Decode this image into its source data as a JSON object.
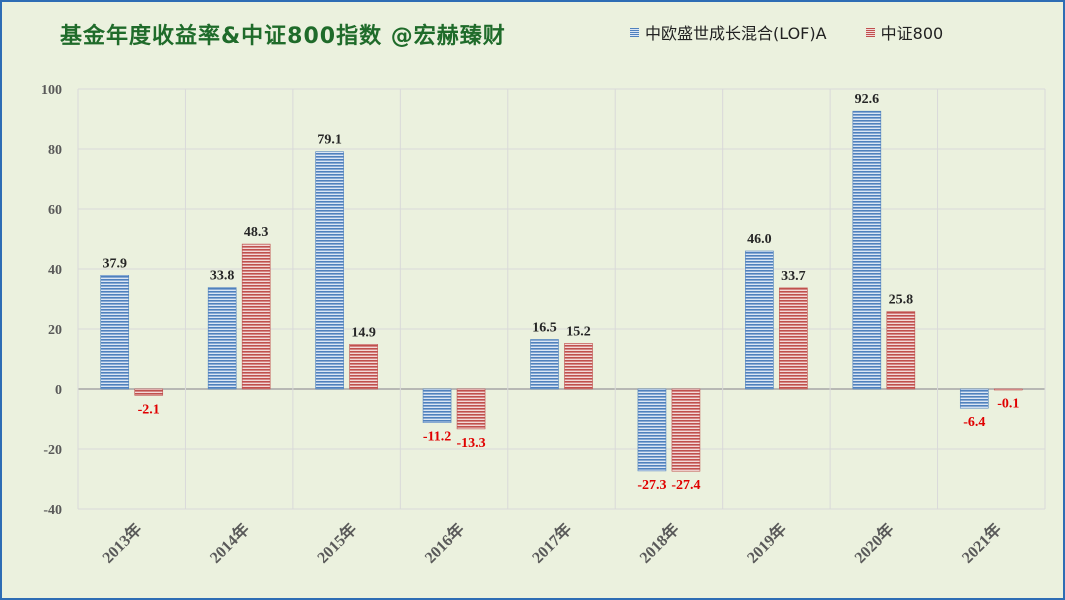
{
  "title": "基金年度收益率&中证800指数 @宏赫臻财",
  "colors": {
    "background": "#ebf1de",
    "border": "#2e6db4",
    "title": "#1f6b2a",
    "fund": "#4f81bd",
    "index": "#c0504d",
    "positive_label": "#262626",
    "negative_label": "#e00000"
  },
  "chart_data": {
    "type": "bar",
    "title": "基金年度收益率&中证800指数 @宏赫臻财",
    "categories": [
      "2013年",
      "2014年",
      "2015年",
      "2016年",
      "2017年",
      "2018年",
      "2019年",
      "2020年",
      "2021年"
    ],
    "series": [
      {
        "name": "中欧盛世成长混合(LOF)A",
        "values": [
          37.9,
          33.8,
          79.1,
          -11.2,
          16.5,
          -27.3,
          46.0,
          92.6,
          -6.4
        ]
      },
      {
        "name": "中证800",
        "values": [
          -2.1,
          48.3,
          14.9,
          -13.3,
          15.2,
          -27.4,
          33.7,
          25.8,
          -0.1
        ]
      }
    ],
    "ylim": [
      -40,
      100
    ],
    "yticks": [
      100,
      80,
      60,
      40,
      20,
      0,
      -20,
      -40
    ],
    "grid": true,
    "legend": "top-right",
    "xlabel": "",
    "ylabel": ""
  }
}
